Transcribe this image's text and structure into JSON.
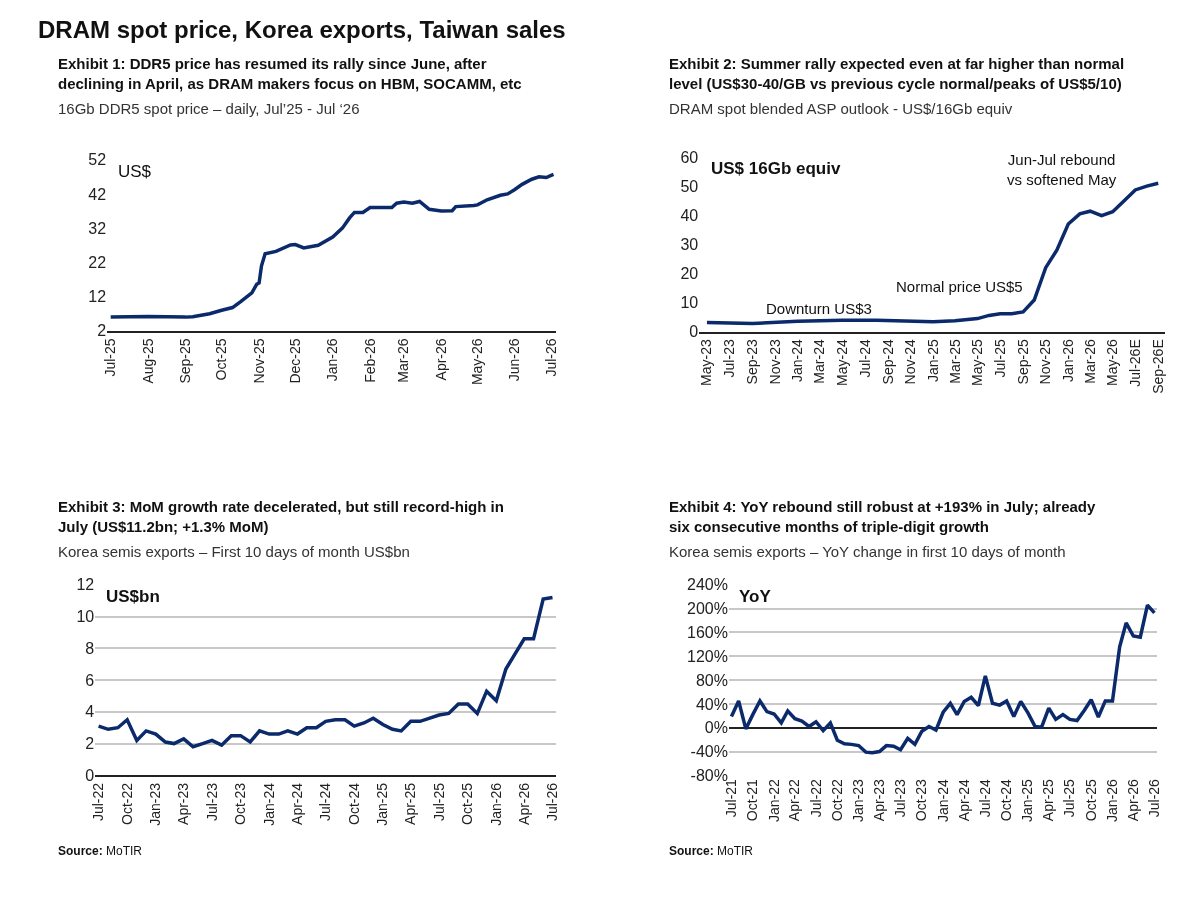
{
  "chart_data": [
    {
      "type": "line",
      "title": "Exhibit 1: DDR5 price has resumed its rally since June, after declining in April, as DRAM makers focus on HBM, SOCAMM, etc",
      "subtitle": "16Gb DDR5 spot price – daily, Jul’25 - Jul ‘26",
      "ylabel": "US$",
      "annotations": [
        "DRAM spot price, Korea exports, Taiwan sales"
      ],
      "x": [
        "2025-07-01",
        "2025-08-01",
        "2025-09-01",
        "2025-09-07",
        "2025-09-21",
        "2025-10-01",
        "2025-10-10",
        "2025-10-17",
        "2025-10-26",
        "2025-10-30",
        "2025-11-01",
        "2025-11-03",
        "2025-11-06",
        "2025-11-15",
        "2025-11-27",
        "2025-12-01",
        "2025-12-08",
        "2025-12-20",
        "2026-01-01",
        "2026-01-09",
        "2026-01-15",
        "2026-01-19",
        "2026-01-26",
        "2026-02-01",
        "2026-02-19",
        "2026-02-23",
        "2026-03-01",
        "2026-03-08",
        "2026-03-14",
        "2026-03-22",
        "2026-04-01",
        "2026-04-10",
        "2026-04-13",
        "2026-04-28",
        "2026-05-01",
        "2026-05-09",
        "2026-05-20",
        "2026-05-26",
        "2026-06-01",
        "2026-06-07",
        "2026-06-15",
        "2026-06-21",
        "2026-06-27",
        "2026-07-03"
      ],
      "series": [
        {
          "color": "#0b2a6b",
          "values": [
            6.0,
            6.2,
            6.0,
            6.1,
            7.0,
            8.0,
            8.8,
            10.6,
            13.1,
            15.6,
            16.0,
            21.0,
            24.5,
            25.2,
            27.1,
            27.2,
            26.2,
            27.0,
            29.4,
            32.0,
            35.0,
            36.6,
            36.6,
            38.0,
            38.0,
            39.3,
            39.6,
            39.3,
            39.8,
            37.5,
            37.0,
            37.1,
            38.3,
            38.6,
            38.8,
            40.3,
            41.6,
            42.0,
            43.3,
            44.8,
            46.3,
            47.0,
            46.8,
            47.7
          ]
        }
      ],
      "xlim": [
        "2025-06-28",
        "2026-07-05"
      ],
      "xticks": [
        {
          "value": "2025-07-01",
          "label": "Jul-25"
        },
        {
          "value": "2025-08-01",
          "label": "Aug-25"
        },
        {
          "value": "2025-09-01",
          "label": "Sep-25"
        },
        {
          "value": "2025-10-01",
          "label": "Oct-25"
        },
        {
          "value": "2025-11-01",
          "label": "Nov-25"
        },
        {
          "value": "2025-12-01",
          "label": "Dec-25"
        },
        {
          "value": "2026-01-01",
          "label": "Jan-26"
        },
        {
          "value": "2026-02-01",
          "label": "Feb-26"
        },
        {
          "value": "2026-03-01",
          "label": "Mar-26"
        },
        {
          "value": "2026-04-01",
          "label": "Apr-26"
        },
        {
          "value": "2026-05-01",
          "label": "May-26"
        },
        {
          "value": "2026-06-01",
          "label": "Jun-26"
        },
        {
          "value": "2026-07-01",
          "label": "Jul-26"
        }
      ],
      "ylim": [
        2,
        52
      ],
      "yticks": [
        2,
        12,
        22,
        32,
        42,
        52
      ],
      "grid": false,
      "marker": "none",
      "line_style": "solid"
    },
    {
      "type": "line",
      "title": "Exhibit 2: Summer rally expected even at far higher than normal level (US$30-40/GB vs previous cycle normal/peaks of US$5/10)",
      "subtitle": "DRAM spot blended ASP outlook - US$/16Gb equiv",
      "ylabel": "US$ 16Gb equiv",
      "annotations": [
        "Downturn US$3",
        "Normal price US$5",
        "Jun-Jul rebound vs softened May"
      ],
      "x": [
        "2023-05",
        "2023-09",
        "2024-01",
        "2024-05",
        "2024-08",
        "2025-01",
        "2025-03",
        "2025-05",
        "2025-06",
        "2025-07",
        "2025-08",
        "2025-09",
        "2025-10",
        "2025-11",
        "2025-12",
        "2026-01",
        "2026-02",
        "2026-03",
        "2026-04",
        "2026-05",
        "2026-06",
        "2026-07",
        "2026-08",
        "2026-09"
      ],
      "series": [
        {
          "color": "#0b2a6b",
          "values": [
            3.2,
            2.8,
            3.6,
            3.9,
            3.9,
            3.4,
            3.8,
            4.5,
            5.6,
            6.2,
            6.2,
            6.8,
            10.9,
            22,
            28,
            37,
            40.5,
            41.4,
            39.9,
            41.2,
            45,
            48.7,
            50,
            51
          ]
        }
      ],
      "xlim": [
        "2023-04-10",
        "2026-09-20"
      ],
      "xticks": [
        {
          "value": "2023-05",
          "label": "May-23"
        },
        {
          "value": "2023-07",
          "label": "Jul-23"
        },
        {
          "value": "2023-09",
          "label": "Sep-23"
        },
        {
          "value": "2023-11",
          "label": "Nov-23"
        },
        {
          "value": "2024-01",
          "label": "Jan-24"
        },
        {
          "value": "2024-03",
          "label": "Mar-24"
        },
        {
          "value": "2024-05",
          "label": "May-24"
        },
        {
          "value": "2024-07",
          "label": "Jul-24"
        },
        {
          "value": "2024-09",
          "label": "Sep-24"
        },
        {
          "value": "2024-11",
          "label": "Nov-24"
        },
        {
          "value": "2025-01",
          "label": "Jan-25"
        },
        {
          "value": "2025-03",
          "label": "Mar-25"
        },
        {
          "value": "2025-05",
          "label": "May-25"
        },
        {
          "value": "2025-07",
          "label": "Jul-25"
        },
        {
          "value": "2025-09",
          "label": "Sep-25"
        },
        {
          "value": "2025-11",
          "label": "Nov-25"
        },
        {
          "value": "2026-01",
          "label": "Jan-26"
        },
        {
          "value": "2026-03",
          "label": "Mar-26"
        },
        {
          "value": "2026-05",
          "label": "May-26"
        },
        {
          "value": "2026-07",
          "label": "Jul-26E"
        },
        {
          "value": "2026-09",
          "label": "Sep-26E"
        }
      ],
      "ylim": [
        0,
        60
      ],
      "yticks": [
        0,
        10,
        20,
        30,
        40,
        50,
        60
      ],
      "grid": false,
      "marker": "none",
      "line_style": "solid"
    },
    {
      "type": "line",
      "title": "Exhibit 3: MoM growth rate decelerated, but still record-high in July (US$11.2bn; +1.3% MoM)",
      "subtitle": "Korea semis exports – First 10 days of month US$bn",
      "ylabel": "US$bn",
      "annotations": [
        "Source: MoTIR"
      ],
      "x": [
        "2022-07",
        "2022-08",
        "2022-09",
        "2022-10",
        "2022-11",
        "2022-12",
        "2023-01",
        "2023-02",
        "2023-03",
        "2023-04",
        "2023-05",
        "2023-06",
        "2023-07",
        "2023-08",
        "2023-09",
        "2023-10",
        "2023-11",
        "2023-12",
        "2024-01",
        "2024-02",
        "2024-03",
        "2024-04",
        "2024-05",
        "2024-06",
        "2024-07",
        "2024-08",
        "2024-09",
        "2024-10",
        "2024-11",
        "2024-12",
        "2025-01",
        "2025-02",
        "2025-03",
        "2025-04",
        "2025-05",
        "2025-06",
        "2025-07",
        "2025-08",
        "2025-09",
        "2025-10",
        "2025-11",
        "2025-12",
        "2026-01",
        "2026-02",
        "2026-03",
        "2026-04",
        "2026-05",
        "2026-06",
        "2026-07"
      ],
      "series": [
        {
          "color": "#0b2a6b",
          "values": [
            3.1,
            2.9,
            3.0,
            3.5,
            2.2,
            2.8,
            2.6,
            2.1,
            2.0,
            2.3,
            1.8,
            2.0,
            2.2,
            1.9,
            2.5,
            2.5,
            2.1,
            2.8,
            2.6,
            2.6,
            2.8,
            2.6,
            3.0,
            3.0,
            3.4,
            3.5,
            3.5,
            3.1,
            3.3,
            3.6,
            3.2,
            2.9,
            2.8,
            3.4,
            3.4,
            3.6,
            3.8,
            3.9,
            4.5,
            4.5,
            3.9,
            5.3,
            4.7,
            6.7,
            7.6,
            8.6,
            8.6,
            11.1,
            11.2
          ]
        }
      ],
      "xlim": [
        "2022-06-20",
        "2026-07-12"
      ],
      "xticks": [
        {
          "value": "2022-07",
          "label": "Jul-22"
        },
        {
          "value": "2022-10",
          "label": "Oct-22"
        },
        {
          "value": "2023-01",
          "label": "Jan-23"
        },
        {
          "value": "2023-04",
          "label": "Apr-23"
        },
        {
          "value": "2023-07",
          "label": "Jul-23"
        },
        {
          "value": "2023-10",
          "label": "Oct-23"
        },
        {
          "value": "2024-01",
          "label": "Jan-24"
        },
        {
          "value": "2024-04",
          "label": "Apr-24"
        },
        {
          "value": "2024-07",
          "label": "Jul-24"
        },
        {
          "value": "2024-10",
          "label": "Oct-24"
        },
        {
          "value": "2025-01",
          "label": "Jan-25"
        },
        {
          "value": "2025-04",
          "label": "Apr-25"
        },
        {
          "value": "2025-07",
          "label": "Jul-25"
        },
        {
          "value": "2025-10",
          "label": "Oct-25"
        },
        {
          "value": "2026-01",
          "label": "Jan-26"
        },
        {
          "value": "2026-04",
          "label": "Apr-26"
        },
        {
          "value": "2026-07",
          "label": "Jul-26"
        }
      ],
      "ylim": [
        0,
        12
      ],
      "yticks": [
        0,
        2,
        4,
        6,
        8,
        10,
        12
      ],
      "grid": "y",
      "marker": "none",
      "line_style": "solid"
    },
    {
      "type": "line",
      "title": "Exhibit 4: YoY rebound still robust at +193% in July; already six consecutive months of triple-digit growth",
      "subtitle": "Korea semis exports – YoY change in first 10 days of month",
      "ylabel": "YoY",
      "annotations": [
        "Source: MoTIR"
      ],
      "x": [
        "2021-07",
        "2021-08",
        "2021-09",
        "2021-10",
        "2021-11",
        "2021-12",
        "2022-01",
        "2022-02",
        "2022-03",
        "2022-04",
        "2022-05",
        "2022-06",
        "2022-07",
        "2022-08",
        "2022-09",
        "2022-10",
        "2022-11",
        "2022-12",
        "2023-01",
        "2023-02",
        "2023-03",
        "2023-04",
        "2023-05",
        "2023-06",
        "2023-07",
        "2023-08",
        "2023-09",
        "2023-10",
        "2023-11",
        "2023-12",
        "2024-01",
        "2024-02",
        "2024-03",
        "2024-04",
        "2024-05",
        "2024-06",
        "2024-07",
        "2024-08",
        "2024-09",
        "2024-10",
        "2024-11",
        "2024-12",
        "2025-01",
        "2025-02",
        "2025-03",
        "2025-04",
        "2025-05",
        "2025-06",
        "2025-07",
        "2025-08",
        "2025-09",
        "2025-10",
        "2025-11",
        "2025-12",
        "2026-01",
        "2026-02",
        "2026-03",
        "2026-04",
        "2026-05",
        "2026-06",
        "2026-07"
      ],
      "series": [
        {
          "color": "#0b2a6b",
          "values": [
            19,
            45,
            -2,
            22,
            45,
            27,
            23,
            8,
            28,
            15,
            11,
            2,
            10,
            -5,
            8,
            -21,
            -27,
            -28,
            -30,
            -41,
            -42,
            -40,
            -30,
            -31,
            -37,
            -18,
            -28,
            -6,
            2,
            -4,
            26,
            41,
            22,
            44,
            51,
            37,
            87,
            41,
            38,
            45,
            19,
            44,
            25,
            2,
            1,
            33,
            14,
            22,
            14,
            12,
            29,
            47,
            18,
            45,
            45,
            136,
            176,
            154,
            152,
            206,
            193
          ]
        }
      ],
      "xlim": [
        "2021-06-20",
        "2026-07-12"
      ],
      "xticks": [
        {
          "value": "2021-07",
          "label": "Jul-21"
        },
        {
          "value": "2021-10",
          "label": "Oct-21"
        },
        {
          "value": "2022-01",
          "label": "Jan-22"
        },
        {
          "value": "2022-04",
          "label": "Apr-22"
        },
        {
          "value": "2022-07",
          "label": "Jul-22"
        },
        {
          "value": "2022-10",
          "label": "Oct-22"
        },
        {
          "value": "2023-01",
          "label": "Jan-23"
        },
        {
          "value": "2023-04",
          "label": "Apr-23"
        },
        {
          "value": "2023-07",
          "label": "Jul-23"
        },
        {
          "value": "2023-10",
          "label": "Oct-23"
        },
        {
          "value": "2024-01",
          "label": "Jan-24"
        },
        {
          "value": "2024-04",
          "label": "Apr-24"
        },
        {
          "value": "2024-07",
          "label": "Jul-24"
        },
        {
          "value": "2024-10",
          "label": "Oct-24"
        },
        {
          "value": "2025-01",
          "label": "Jan-25"
        },
        {
          "value": "2025-04",
          "label": "Apr-25"
        },
        {
          "value": "2025-07",
          "label": "Jul-25"
        },
        {
          "value": "2025-10",
          "label": "Oct-25"
        },
        {
          "value": "2026-01",
          "label": "Jan-26"
        },
        {
          "value": "2026-04",
          "label": "Apr-26"
        },
        {
          "value": "2026-07",
          "label": "Jul-26"
        }
      ],
      "ylim": [
        -80,
        240
      ],
      "yticks": [
        {
          "value": -80,
          "label": "-80%"
        },
        {
          "value": -40,
          "label": "-40%"
        },
        {
          "value": 0,
          "label": "0%"
        },
        {
          "value": 40,
          "label": "40%"
        },
        {
          "value": 80,
          "label": "80%"
        },
        {
          "value": 120,
          "label": "120%"
        },
        {
          "value": 160,
          "label": "160%"
        },
        {
          "value": 200,
          "label": "200%"
        },
        {
          "value": 240,
          "label": "240%"
        }
      ],
      "grid": "y",
      "marker": "none",
      "line_style": "solid"
    }
  ]
}
